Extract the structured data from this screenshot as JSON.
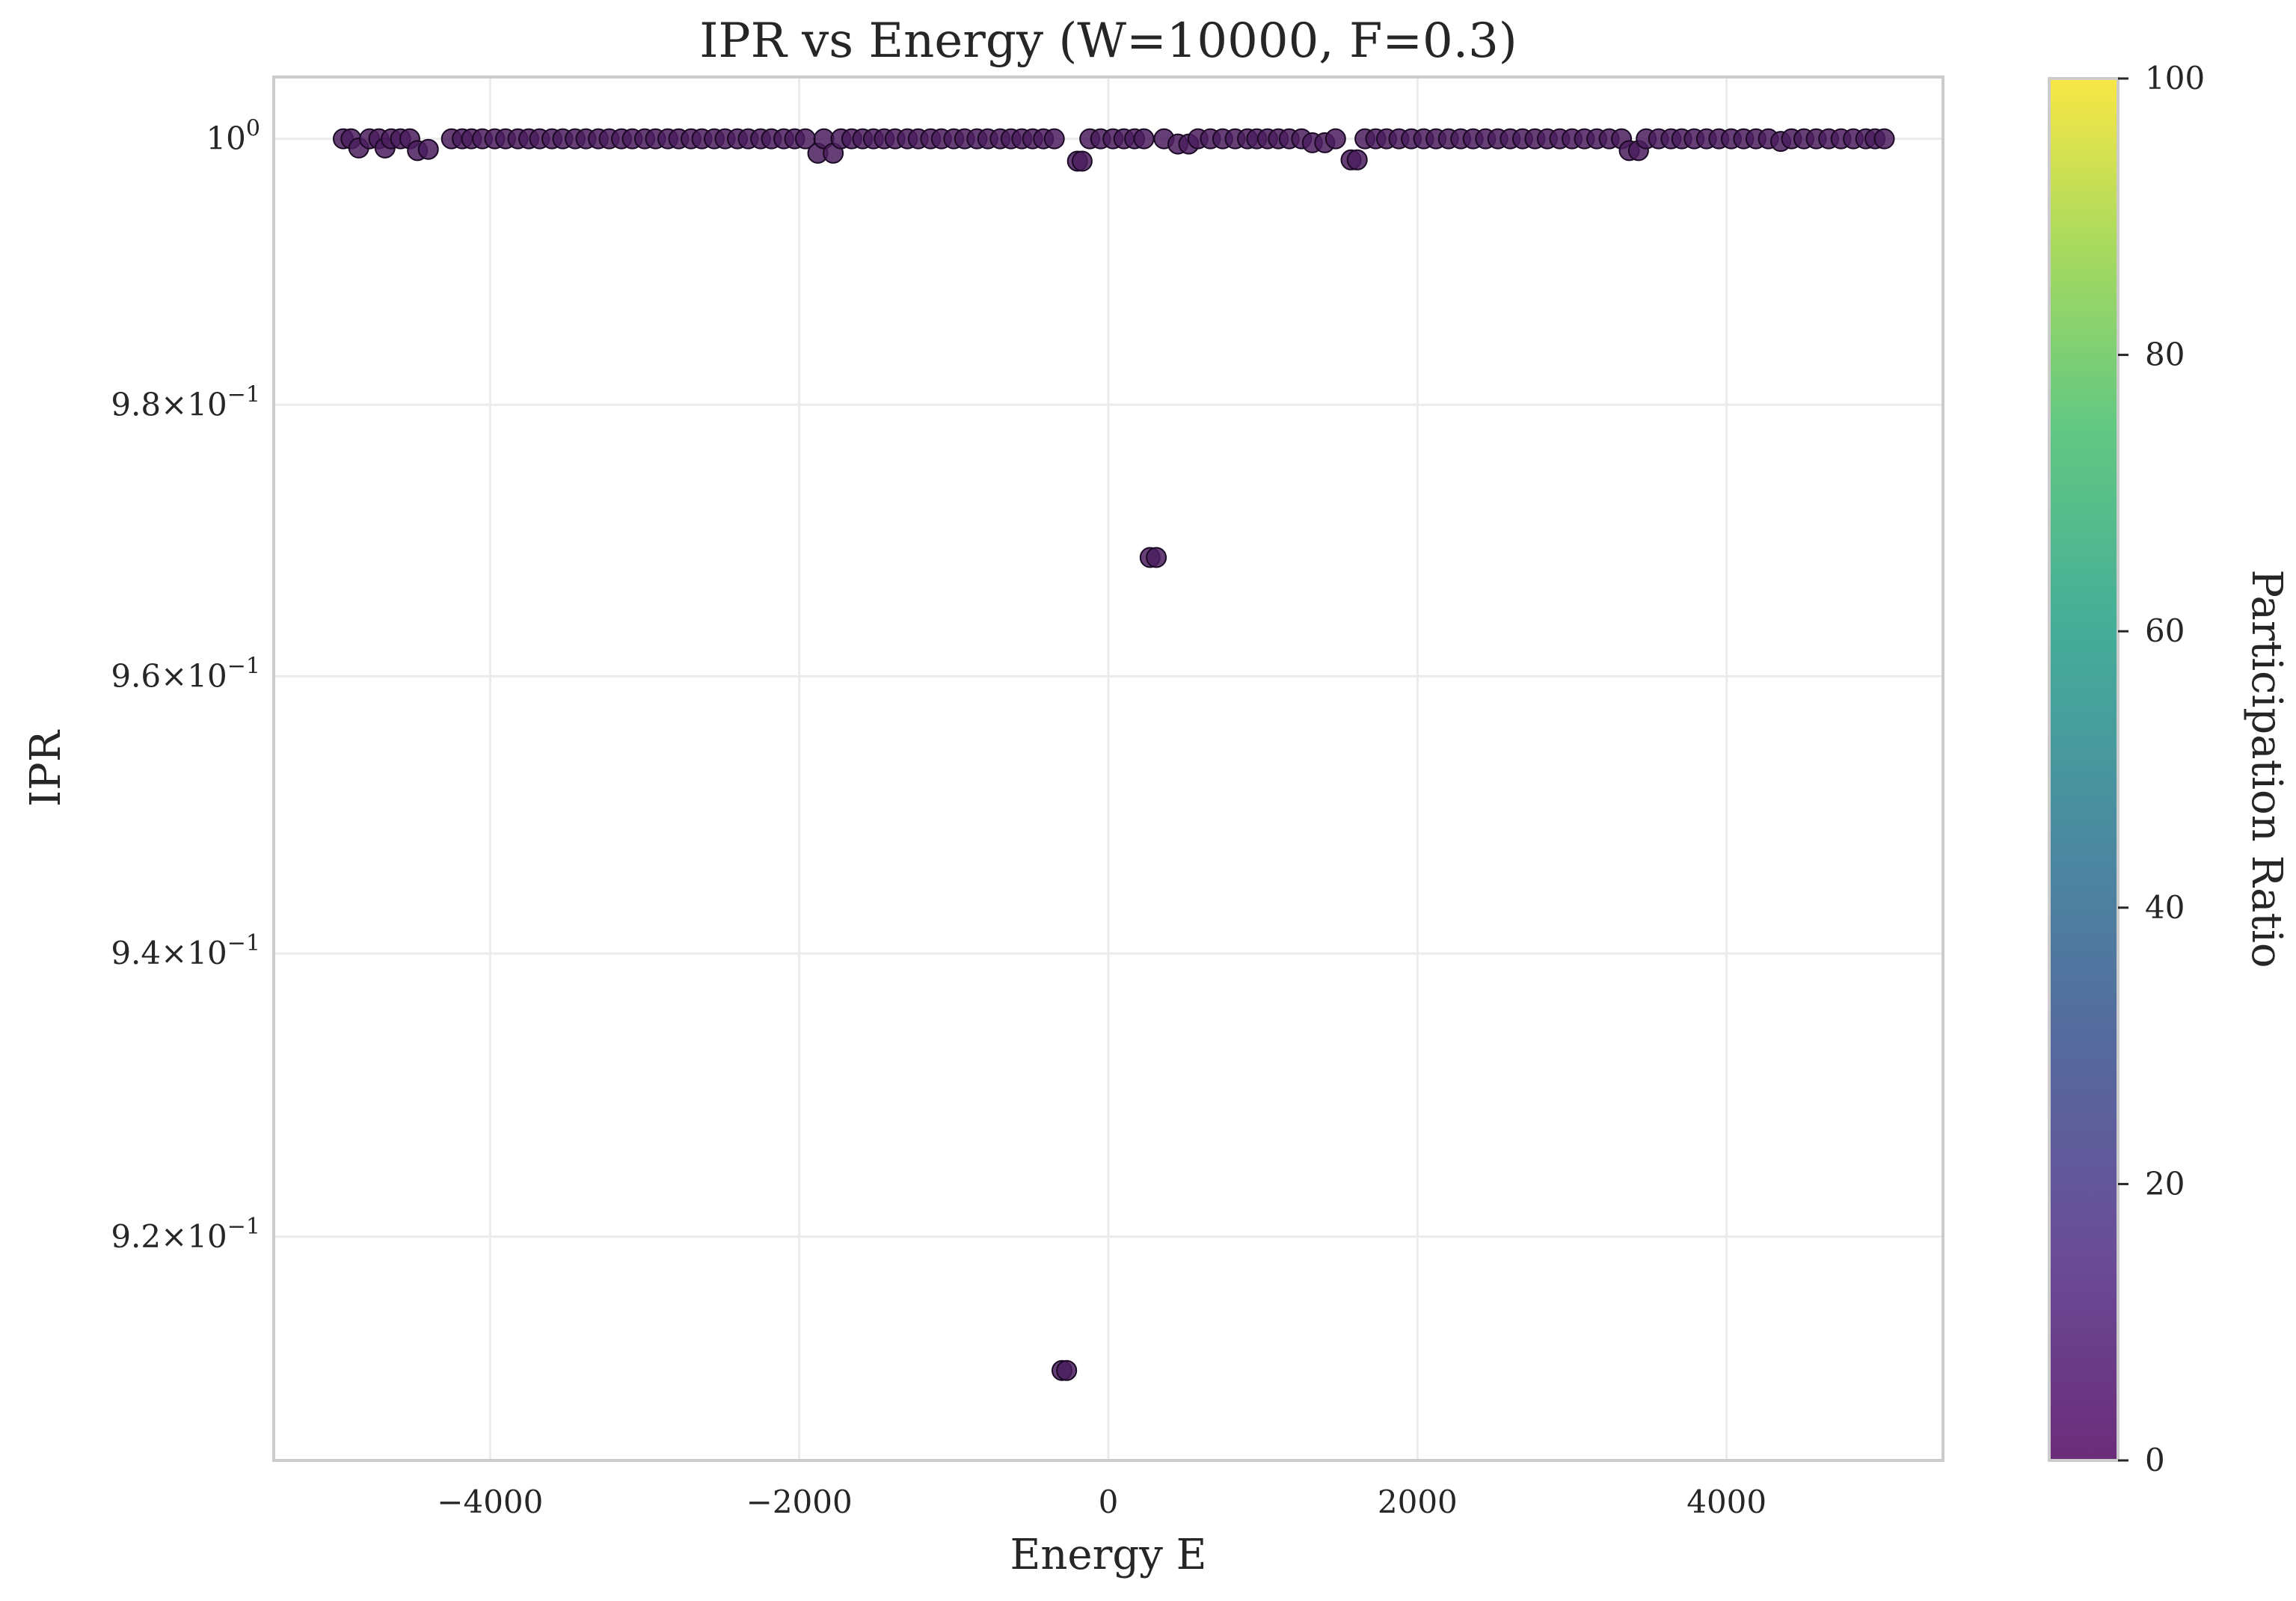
{
  "chart_data": {
    "type": "scatter",
    "title": "IPR vs Energy (W=10000, F=0.3)",
    "xlabel": "Energy E",
    "ylabel": "IPR",
    "xlim": [
      -5400,
      5400
    ],
    "ylim": [
      0.9045,
      1.0047
    ],
    "yscale": "log",
    "grid": true,
    "x_ticks": [
      {
        "value": -4000,
        "label": "−4000"
      },
      {
        "value": -2000,
        "label": "−2000"
      },
      {
        "value": 0,
        "label": "0"
      },
      {
        "value": 2000,
        "label": "2000"
      },
      {
        "value": 4000,
        "label": "4000"
      }
    ],
    "y_ticks": [
      {
        "value": 1.0,
        "mantissa": "",
        "base": "10",
        "exponent": "0"
      },
      {
        "value": 0.98,
        "mantissa": "9.8",
        "base": "10",
        "exponent": "−1"
      },
      {
        "value": 0.96,
        "mantissa": "9.6",
        "base": "10",
        "exponent": "−1"
      },
      {
        "value": 0.94,
        "mantissa": "9.4",
        "base": "10",
        "exponent": "−1"
      },
      {
        "value": 0.92,
        "mantissa": "9.2",
        "base": "10",
        "exponent": "−1"
      }
    ],
    "colorbar": {
      "label": "Participation Ratio",
      "colormap": "viridis",
      "range": [
        0,
        100
      ],
      "ticks": [
        0,
        20,
        40,
        60,
        80,
        100
      ]
    },
    "marker_color": "#4b1d5e",
    "marker_edge_color": "#1a0a24",
    "points": [
      {
        "x": -4950,
        "y": 1.0
      },
      {
        "x": -4900,
        "y": 1.0
      },
      {
        "x": -4850,
        "y": 0.9993
      },
      {
        "x": -4780,
        "y": 1.0
      },
      {
        "x": -4720,
        "y": 1.0
      },
      {
        "x": -4680,
        "y": 0.9993
      },
      {
        "x": -4640,
        "y": 1.0
      },
      {
        "x": -4580,
        "y": 1.0
      },
      {
        "x": -4520,
        "y": 1.0
      },
      {
        "x": -4470,
        "y": 0.9991
      },
      {
        "x": -4400,
        "y": 0.9992
      },
      {
        "x": -4250,
        "y": 1.0
      },
      {
        "x": -4180,
        "y": 1.0
      },
      {
        "x": -4120,
        "y": 1.0
      },
      {
        "x": -4050,
        "y": 1.0
      },
      {
        "x": -3970,
        "y": 1.0
      },
      {
        "x": -3900,
        "y": 1.0
      },
      {
        "x": -3820,
        "y": 1.0
      },
      {
        "x": -3750,
        "y": 1.0
      },
      {
        "x": -3680,
        "y": 1.0
      },
      {
        "x": -3600,
        "y": 1.0
      },
      {
        "x": -3530,
        "y": 1.0
      },
      {
        "x": -3450,
        "y": 1.0
      },
      {
        "x": -3380,
        "y": 1.0
      },
      {
        "x": -3300,
        "y": 1.0
      },
      {
        "x": -3230,
        "y": 1.0
      },
      {
        "x": -3150,
        "y": 1.0
      },
      {
        "x": -3080,
        "y": 1.0
      },
      {
        "x": -3000,
        "y": 1.0
      },
      {
        "x": -2930,
        "y": 1.0
      },
      {
        "x": -2850,
        "y": 1.0
      },
      {
        "x": -2780,
        "y": 1.0
      },
      {
        "x": -2700,
        "y": 1.0
      },
      {
        "x": -2630,
        "y": 1.0
      },
      {
        "x": -2550,
        "y": 1.0
      },
      {
        "x": -2480,
        "y": 1.0
      },
      {
        "x": -2400,
        "y": 1.0
      },
      {
        "x": -2330,
        "y": 1.0
      },
      {
        "x": -2250,
        "y": 1.0
      },
      {
        "x": -2180,
        "y": 1.0
      },
      {
        "x": -2100,
        "y": 1.0
      },
      {
        "x": -2030,
        "y": 1.0
      },
      {
        "x": -1960,
        "y": 1.0
      },
      {
        "x": -1880,
        "y": 0.9989
      },
      {
        "x": -1840,
        "y": 1.0
      },
      {
        "x": -1780,
        "y": 0.9989
      },
      {
        "x": -1730,
        "y": 1.0
      },
      {
        "x": -1660,
        "y": 1.0
      },
      {
        "x": -1590,
        "y": 1.0
      },
      {
        "x": -1520,
        "y": 1.0
      },
      {
        "x": -1450,
        "y": 1.0
      },
      {
        "x": -1380,
        "y": 1.0
      },
      {
        "x": -1300,
        "y": 1.0
      },
      {
        "x": -1230,
        "y": 1.0
      },
      {
        "x": -1150,
        "y": 1.0
      },
      {
        "x": -1080,
        "y": 1.0
      },
      {
        "x": -1000,
        "y": 1.0
      },
      {
        "x": -930,
        "y": 1.0
      },
      {
        "x": -850,
        "y": 1.0
      },
      {
        "x": -780,
        "y": 1.0
      },
      {
        "x": -700,
        "y": 1.0
      },
      {
        "x": -630,
        "y": 1.0
      },
      {
        "x": -560,
        "y": 1.0
      },
      {
        "x": -490,
        "y": 1.0
      },
      {
        "x": -420,
        "y": 1.0
      },
      {
        "x": -350,
        "y": 1.0
      },
      {
        "x": -300,
        "y": 0.9107
      },
      {
        "x": -270,
        "y": 0.9107
      },
      {
        "x": -200,
        "y": 0.9983
      },
      {
        "x": -170,
        "y": 0.9983
      },
      {
        "x": -120,
        "y": 1.0
      },
      {
        "x": -50,
        "y": 1.0
      },
      {
        "x": 30,
        "y": 1.0
      },
      {
        "x": 100,
        "y": 1.0
      },
      {
        "x": 170,
        "y": 1.0
      },
      {
        "x": 230,
        "y": 1.0
      },
      {
        "x": 270,
        "y": 0.9687
      },
      {
        "x": 310,
        "y": 0.9687
      },
      {
        "x": 360,
        "y": 1.0
      },
      {
        "x": 450,
        "y": 0.9996
      },
      {
        "x": 520,
        "y": 0.9996
      },
      {
        "x": 580,
        "y": 1.0
      },
      {
        "x": 660,
        "y": 1.0
      },
      {
        "x": 740,
        "y": 1.0
      },
      {
        "x": 820,
        "y": 1.0
      },
      {
        "x": 900,
        "y": 1.0
      },
      {
        "x": 960,
        "y": 1.0
      },
      {
        "x": 1030,
        "y": 1.0
      },
      {
        "x": 1100,
        "y": 1.0
      },
      {
        "x": 1170,
        "y": 1.0
      },
      {
        "x": 1250,
        "y": 1.0
      },
      {
        "x": 1320,
        "y": 0.9997
      },
      {
        "x": 1400,
        "y": 0.9997
      },
      {
        "x": 1470,
        "y": 1.0
      },
      {
        "x": 1570,
        "y": 0.9984
      },
      {
        "x": 1610,
        "y": 0.9984
      },
      {
        "x": 1660,
        "y": 1.0
      },
      {
        "x": 1730,
        "y": 1.0
      },
      {
        "x": 1800,
        "y": 1.0
      },
      {
        "x": 1880,
        "y": 1.0
      },
      {
        "x": 1960,
        "y": 1.0
      },
      {
        "x": 2040,
        "y": 1.0
      },
      {
        "x": 2120,
        "y": 1.0
      },
      {
        "x": 2200,
        "y": 1.0
      },
      {
        "x": 2280,
        "y": 1.0
      },
      {
        "x": 2360,
        "y": 1.0
      },
      {
        "x": 2440,
        "y": 1.0
      },
      {
        "x": 2520,
        "y": 1.0
      },
      {
        "x": 2600,
        "y": 1.0
      },
      {
        "x": 2680,
        "y": 1.0
      },
      {
        "x": 2760,
        "y": 1.0
      },
      {
        "x": 2840,
        "y": 1.0
      },
      {
        "x": 2920,
        "y": 1.0
      },
      {
        "x": 3000,
        "y": 1.0
      },
      {
        "x": 3080,
        "y": 1.0
      },
      {
        "x": 3160,
        "y": 1.0
      },
      {
        "x": 3240,
        "y": 1.0
      },
      {
        "x": 3320,
        "y": 1.0
      },
      {
        "x": 3370,
        "y": 0.9991
      },
      {
        "x": 3430,
        "y": 0.9991
      },
      {
        "x": 3480,
        "y": 1.0
      },
      {
        "x": 3560,
        "y": 1.0
      },
      {
        "x": 3640,
        "y": 1.0
      },
      {
        "x": 3710,
        "y": 1.0
      },
      {
        "x": 3790,
        "y": 1.0
      },
      {
        "x": 3870,
        "y": 1.0
      },
      {
        "x": 3950,
        "y": 1.0
      },
      {
        "x": 4030,
        "y": 1.0
      },
      {
        "x": 4110,
        "y": 1.0
      },
      {
        "x": 4190,
        "y": 1.0
      },
      {
        "x": 4270,
        "y": 1.0
      },
      {
        "x": 4350,
        "y": 0.9998
      },
      {
        "x": 4420,
        "y": 1.0
      },
      {
        "x": 4500,
        "y": 1.0
      },
      {
        "x": 4580,
        "y": 1.0
      },
      {
        "x": 4660,
        "y": 1.0
      },
      {
        "x": 4740,
        "y": 1.0
      },
      {
        "x": 4820,
        "y": 1.0
      },
      {
        "x": 4900,
        "y": 1.0
      },
      {
        "x": 4960,
        "y": 1.0
      },
      {
        "x": 5020,
        "y": 1.0
      }
    ]
  }
}
